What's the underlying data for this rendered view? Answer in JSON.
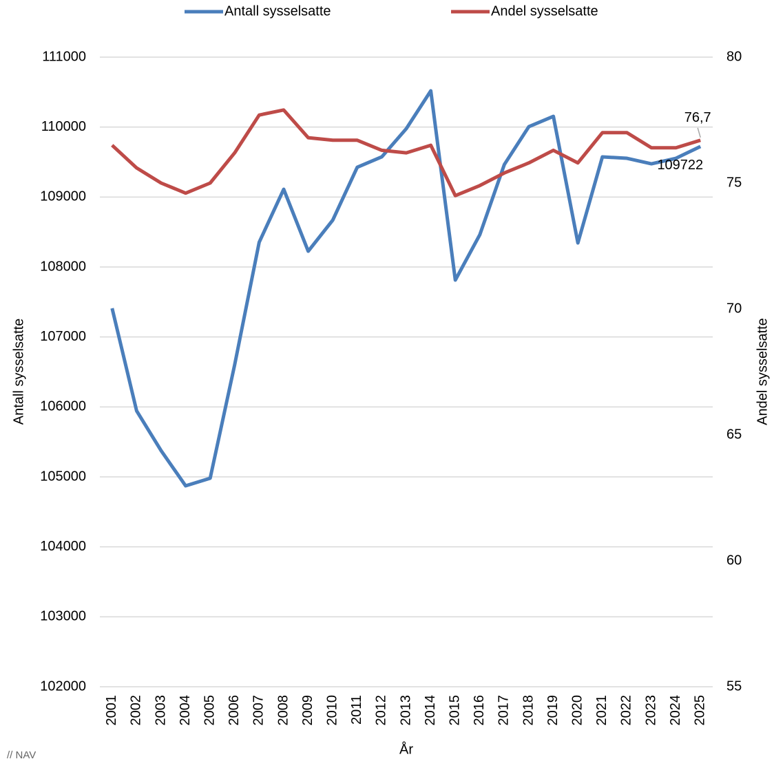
{
  "chart_data": {
    "type": "line",
    "categories": [
      "2001",
      "2002",
      "2003",
      "2004",
      "2005",
      "2006",
      "2007",
      "2008",
      "2009",
      "2010",
      "2011",
      "2012",
      "2013",
      "2014",
      "2015",
      "2016",
      "2017",
      "2018",
      "2019",
      "2020",
      "2021",
      "2022",
      "2023",
      "2024",
      "2025"
    ],
    "series": [
      {
        "name": "Antall sysselsatte",
        "color": "#4a7ebb",
        "axis": "y",
        "values": [
          107410,
          105944,
          105374,
          104872,
          104980,
          106603,
          108354,
          109111,
          108226,
          108669,
          109426,
          109574,
          109977,
          110518,
          107813,
          108462,
          109465,
          110006,
          110154,
          108344,
          109574,
          109554,
          109475,
          109554,
          109722
        ],
        "value_labels": [
          null,
          null,
          null,
          null,
          null,
          null,
          null,
          null,
          null,
          null,
          null,
          null,
          null,
          null,
          null,
          null,
          null,
          null,
          null,
          null,
          null,
          null,
          null,
          null,
          "109722"
        ]
      },
      {
        "name": "Andel sysselsatte",
        "color": "#be4b48",
        "axis": "y2",
        "values": [
          76.5,
          75.6,
          75.0,
          74.6,
          75.0,
          76.2,
          77.7,
          77.9,
          76.8,
          76.7,
          76.7,
          76.3,
          76.2,
          76.5,
          74.5,
          74.9,
          75.4,
          75.8,
          76.3,
          75.8,
          77.0,
          77.0,
          76.4,
          76.4,
          76.7
        ],
        "value_labels": [
          null,
          null,
          null,
          null,
          null,
          null,
          null,
          null,
          null,
          null,
          null,
          null,
          null,
          null,
          null,
          null,
          null,
          null,
          null,
          null,
          null,
          null,
          null,
          null,
          "76,7"
        ]
      }
    ],
    "xlabel": "År",
    "ylabel": "Antall sysselsatte",
    "y2label": "Andel sysselsatte",
    "ylim": [
      102000,
      111000
    ],
    "yticks": [
      102000,
      103000,
      104000,
      105000,
      106000,
      107000,
      108000,
      109000,
      110000,
      111000
    ],
    "y2lim": [
      55,
      80
    ],
    "y2ticks": [
      55,
      60,
      65,
      70,
      75,
      80
    ],
    "grid": true,
    "legend": "top",
    "footer": "// NAV"
  }
}
